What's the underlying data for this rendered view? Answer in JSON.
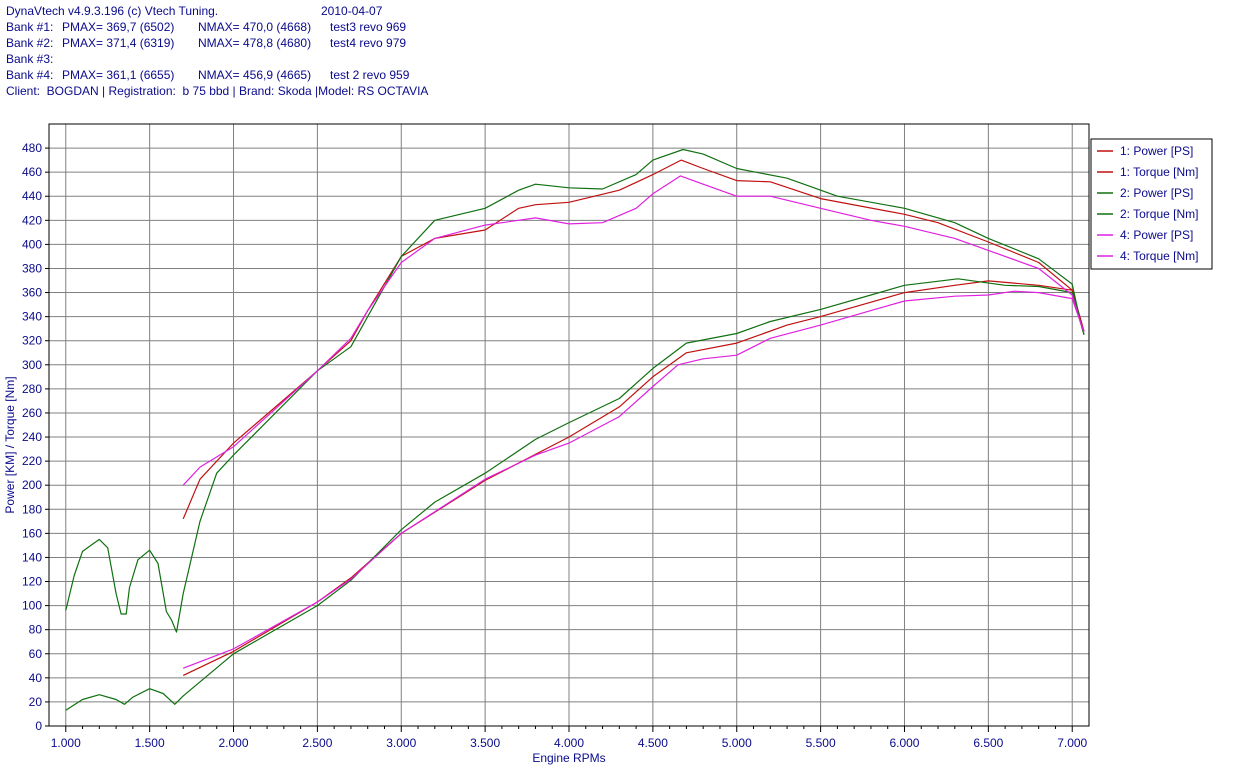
{
  "header": {
    "app": "DynaVtech v4.9.3.196 (c) Vtech Tuning.",
    "date": "2010-04-07",
    "banks": [
      {
        "label": "Bank #1:",
        "pmax": "PMAX= 369,7 (6502)",
        "nmax": "NMAX= 470,0 (4668)",
        "name": "test3 revo 969"
      },
      {
        "label": "Bank #2:",
        "pmax": "PMAX= 371,4 (6319)",
        "nmax": "NMAX= 478,8 (4680)",
        "name": "test4 revo 979"
      },
      {
        "label": "Bank #3:",
        "pmax": "",
        "nmax": "",
        "name": ""
      },
      {
        "label": "Bank #4:",
        "pmax": "PMAX= 361,1 (6655)",
        "nmax": "NMAX= 456,9 (4665)",
        "name": "test 2 revo 959"
      }
    ],
    "client": "Client:  BOGDAN | Registration:  b 75 bbd | Brand: Skoda |Model: RS OCTAVIA"
  },
  "colors": {
    "bank1": "#c01010",
    "bank2": "#107010",
    "bank4": "#e020e0",
    "grid": "#808080",
    "axis_text": "#0a0a8c"
  },
  "chart_data": {
    "type": "line",
    "xlabel": "Engine RPMs",
    "ylabel": "Power [KM] / Torque [Nm]",
    "xlim": [
      900,
      7100
    ],
    "ylim": [
      0,
      500
    ],
    "x_ticks": [
      1000,
      1500,
      2000,
      2500,
      3000,
      3500,
      4000,
      4500,
      5000,
      5500,
      6000,
      6500,
      7000
    ],
    "x_tick_labels": [
      "1.000",
      "1.500",
      "2.000",
      "2.500",
      "3.000",
      "3.500",
      "4.000",
      "4.500",
      "5.000",
      "5.500",
      "6.000",
      "6.500",
      "7.000"
    ],
    "y_ticks": [
      0,
      20,
      40,
      60,
      80,
      100,
      120,
      140,
      160,
      180,
      200,
      220,
      240,
      260,
      280,
      300,
      320,
      340,
      360,
      380,
      400,
      420,
      440,
      460,
      480
    ],
    "grid": true,
    "legend": "right",
    "series": [
      {
        "name": "1: Power [PS]",
        "color": "#c01010",
        "points": [
          [
            1700,
            42
          ],
          [
            2000,
            62
          ],
          [
            2500,
            103
          ],
          [
            2700,
            123
          ],
          [
            3000,
            160
          ],
          [
            3500,
            204
          ],
          [
            4000,
            240
          ],
          [
            4300,
            265
          ],
          [
            4500,
            290
          ],
          [
            4700,
            310
          ],
          [
            5000,
            318
          ],
          [
            5300,
            333
          ],
          [
            5500,
            340
          ],
          [
            6000,
            360
          ],
          [
            6300,
            366
          ],
          [
            6500,
            369.7
          ],
          [
            6800,
            366
          ],
          [
            7000,
            362
          ],
          [
            7050,
            335
          ],
          [
            7070,
            328
          ]
        ]
      },
      {
        "name": "1: Torque [Nm]",
        "color": "#c01010",
        "points": [
          [
            1700,
            172
          ],
          [
            1800,
            205
          ],
          [
            2000,
            235
          ],
          [
            2500,
            295
          ],
          [
            2700,
            320
          ],
          [
            2800,
            345
          ],
          [
            3000,
            390
          ],
          [
            3200,
            405
          ],
          [
            3500,
            412
          ],
          [
            3700,
            430
          ],
          [
            3800,
            433
          ],
          [
            4000,
            435
          ],
          [
            4300,
            445
          ],
          [
            4500,
            458
          ],
          [
            4668,
            470
          ],
          [
            4800,
            463
          ],
          [
            5000,
            453
          ],
          [
            5200,
            452
          ],
          [
            5500,
            438
          ],
          [
            6000,
            425
          ],
          [
            6200,
            418
          ],
          [
            6500,
            402
          ],
          [
            6800,
            385
          ],
          [
            7000,
            362
          ],
          [
            7050,
            338
          ],
          [
            7070,
            328
          ]
        ]
      },
      {
        "name": "2: Power [PS]",
        "color": "#107010",
        "points": [
          [
            1000,
            13
          ],
          [
            1100,
            22
          ],
          [
            1200,
            26
          ],
          [
            1300,
            22
          ],
          [
            1350,
            18
          ],
          [
            1400,
            24
          ],
          [
            1500,
            31
          ],
          [
            1580,
            27
          ],
          [
            1650,
            18
          ],
          [
            1700,
            25
          ],
          [
            2000,
            60
          ],
          [
            2500,
            100
          ],
          [
            2700,
            121
          ],
          [
            3000,
            163
          ],
          [
            3200,
            186
          ],
          [
            3500,
            210
          ],
          [
            3800,
            238
          ],
          [
            4000,
            252
          ],
          [
            4300,
            272
          ],
          [
            4500,
            297
          ],
          [
            4700,
            318
          ],
          [
            5000,
            326
          ],
          [
            5200,
            336
          ],
          [
            5500,
            346
          ],
          [
            5800,
            358
          ],
          [
            6000,
            366
          ],
          [
            6319,
            371.4
          ],
          [
            6600,
            366
          ],
          [
            6800,
            365
          ],
          [
            7000,
            360
          ],
          [
            7050,
            335
          ],
          [
            7070,
            325
          ]
        ]
      },
      {
        "name": "2: Torque [Nm]",
        "color": "#107010",
        "points": [
          [
            1000,
            96
          ],
          [
            1050,
            125
          ],
          [
            1100,
            145
          ],
          [
            1200,
            155
          ],
          [
            1250,
            148
          ],
          [
            1300,
            110
          ],
          [
            1330,
            93
          ],
          [
            1360,
            93
          ],
          [
            1380,
            115
          ],
          [
            1430,
            138
          ],
          [
            1500,
            146
          ],
          [
            1550,
            135
          ],
          [
            1600,
            95
          ],
          [
            1630,
            88
          ],
          [
            1660,
            78
          ],
          [
            1700,
            110
          ],
          [
            1800,
            170
          ],
          [
            1900,
            210
          ],
          [
            2000,
            225
          ],
          [
            2500,
            295
          ],
          [
            2700,
            315
          ],
          [
            2800,
            340
          ],
          [
            3000,
            390
          ],
          [
            3200,
            420
          ],
          [
            3500,
            430
          ],
          [
            3700,
            445
          ],
          [
            3800,
            450
          ],
          [
            4000,
            447
          ],
          [
            4200,
            446
          ],
          [
            4400,
            458
          ],
          [
            4500,
            470
          ],
          [
            4680,
            478.8
          ],
          [
            4800,
            475
          ],
          [
            5000,
            463
          ],
          [
            5300,
            455
          ],
          [
            5600,
            440
          ],
          [
            6000,
            430
          ],
          [
            6300,
            418
          ],
          [
            6500,
            405
          ],
          [
            6800,
            388
          ],
          [
            7000,
            367
          ],
          [
            7050,
            335
          ],
          [
            7070,
            325
          ]
        ]
      },
      {
        "name": "4: Power [PS]",
        "color": "#e020e0",
        "points": [
          [
            1700,
            48
          ],
          [
            2000,
            64
          ],
          [
            2500,
            103
          ],
          [
            2700,
            122
          ],
          [
            3000,
            160
          ],
          [
            3500,
            205
          ],
          [
            3800,
            225
          ],
          [
            4000,
            235
          ],
          [
            4300,
            257
          ],
          [
            4500,
            282
          ],
          [
            4650,
            300
          ],
          [
            4800,
            305
          ],
          [
            5000,
            308
          ],
          [
            5200,
            322
          ],
          [
            5500,
            333
          ],
          [
            5800,
            345
          ],
          [
            6000,
            353
          ],
          [
            6300,
            357
          ],
          [
            6500,
            358
          ],
          [
            6655,
            361.1
          ],
          [
            6800,
            360
          ],
          [
            7000,
            355
          ],
          [
            7050,
            335
          ],
          [
            7070,
            328
          ]
        ]
      },
      {
        "name": "4: Torque [Nm]",
        "color": "#e020e0",
        "points": [
          [
            1700,
            200
          ],
          [
            1800,
            215
          ],
          [
            2000,
            232
          ],
          [
            2500,
            295
          ],
          [
            2700,
            322
          ],
          [
            2800,
            345
          ],
          [
            3000,
            385
          ],
          [
            3200,
            405
          ],
          [
            3500,
            416
          ],
          [
            3800,
            422
          ],
          [
            4000,
            417
          ],
          [
            4200,
            418
          ],
          [
            4400,
            430
          ],
          [
            4500,
            442
          ],
          [
            4665,
            456.9
          ],
          [
            4800,
            450
          ],
          [
            5000,
            440
          ],
          [
            5200,
            440
          ],
          [
            5500,
            430
          ],
          [
            5800,
            420
          ],
          [
            6000,
            415
          ],
          [
            6300,
            405
          ],
          [
            6500,
            395
          ],
          [
            6800,
            380
          ],
          [
            7000,
            358
          ],
          [
            7050,
            335
          ],
          [
            7070,
            327
          ]
        ]
      }
    ]
  }
}
